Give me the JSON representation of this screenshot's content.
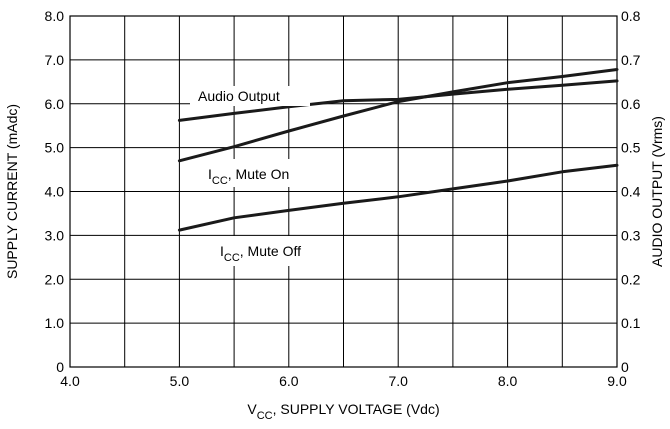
{
  "chart_data": {
    "type": "line",
    "x": [
      5.0,
      5.5,
      6.0,
      6.5,
      7.0,
      7.5,
      8.0,
      8.5,
      9.0
    ],
    "xlabel": {
      "main": "V",
      "sub": "CC",
      "rest": ", SUPPLY VOLTAGE (Vdc)"
    },
    "ylabel": "SUPPLY CURRENT (mAdc)",
    "y2label": "AUDIO OUTPUT (Vrms)",
    "xlim": [
      4.0,
      9.0
    ],
    "ylim": [
      0,
      8.0
    ],
    "y2lim": [
      0,
      0.8
    ],
    "x_ticks": [
      "4.0",
      "5.0",
      "6.0",
      "7.0",
      "8.0",
      "9.0"
    ],
    "y_ticks": [
      "0",
      "1.0",
      "2.0",
      "3.0",
      "4.0",
      "5.0",
      "6.0",
      "7.0",
      "8.0"
    ],
    "y2_ticks": [
      "0",
      "0.1",
      "0.2",
      "0.3",
      "0.4",
      "0.5",
      "0.6",
      "0.7",
      "0.8"
    ],
    "grid": true,
    "series": [
      {
        "name": "Audio Output",
        "axis": "right",
        "values": [
          0.562,
          0.578,
          0.593,
          0.607,
          0.61,
          0.622,
          0.633,
          0.642,
          0.652
        ]
      },
      {
        "name_main": "I",
        "name_sub": "CC",
        "name_rest": ", Mute On",
        "axis": "left",
        "values": [
          4.7,
          5.02,
          5.38,
          5.72,
          6.05,
          6.27,
          6.48,
          6.62,
          6.78
        ]
      },
      {
        "name_main": "I",
        "name_sub": "CC",
        "name_rest": ", Mute Off",
        "axis": "left",
        "values": [
          3.12,
          3.4,
          3.57,
          3.73,
          3.88,
          4.06,
          4.24,
          4.45,
          4.6
        ]
      }
    ]
  }
}
